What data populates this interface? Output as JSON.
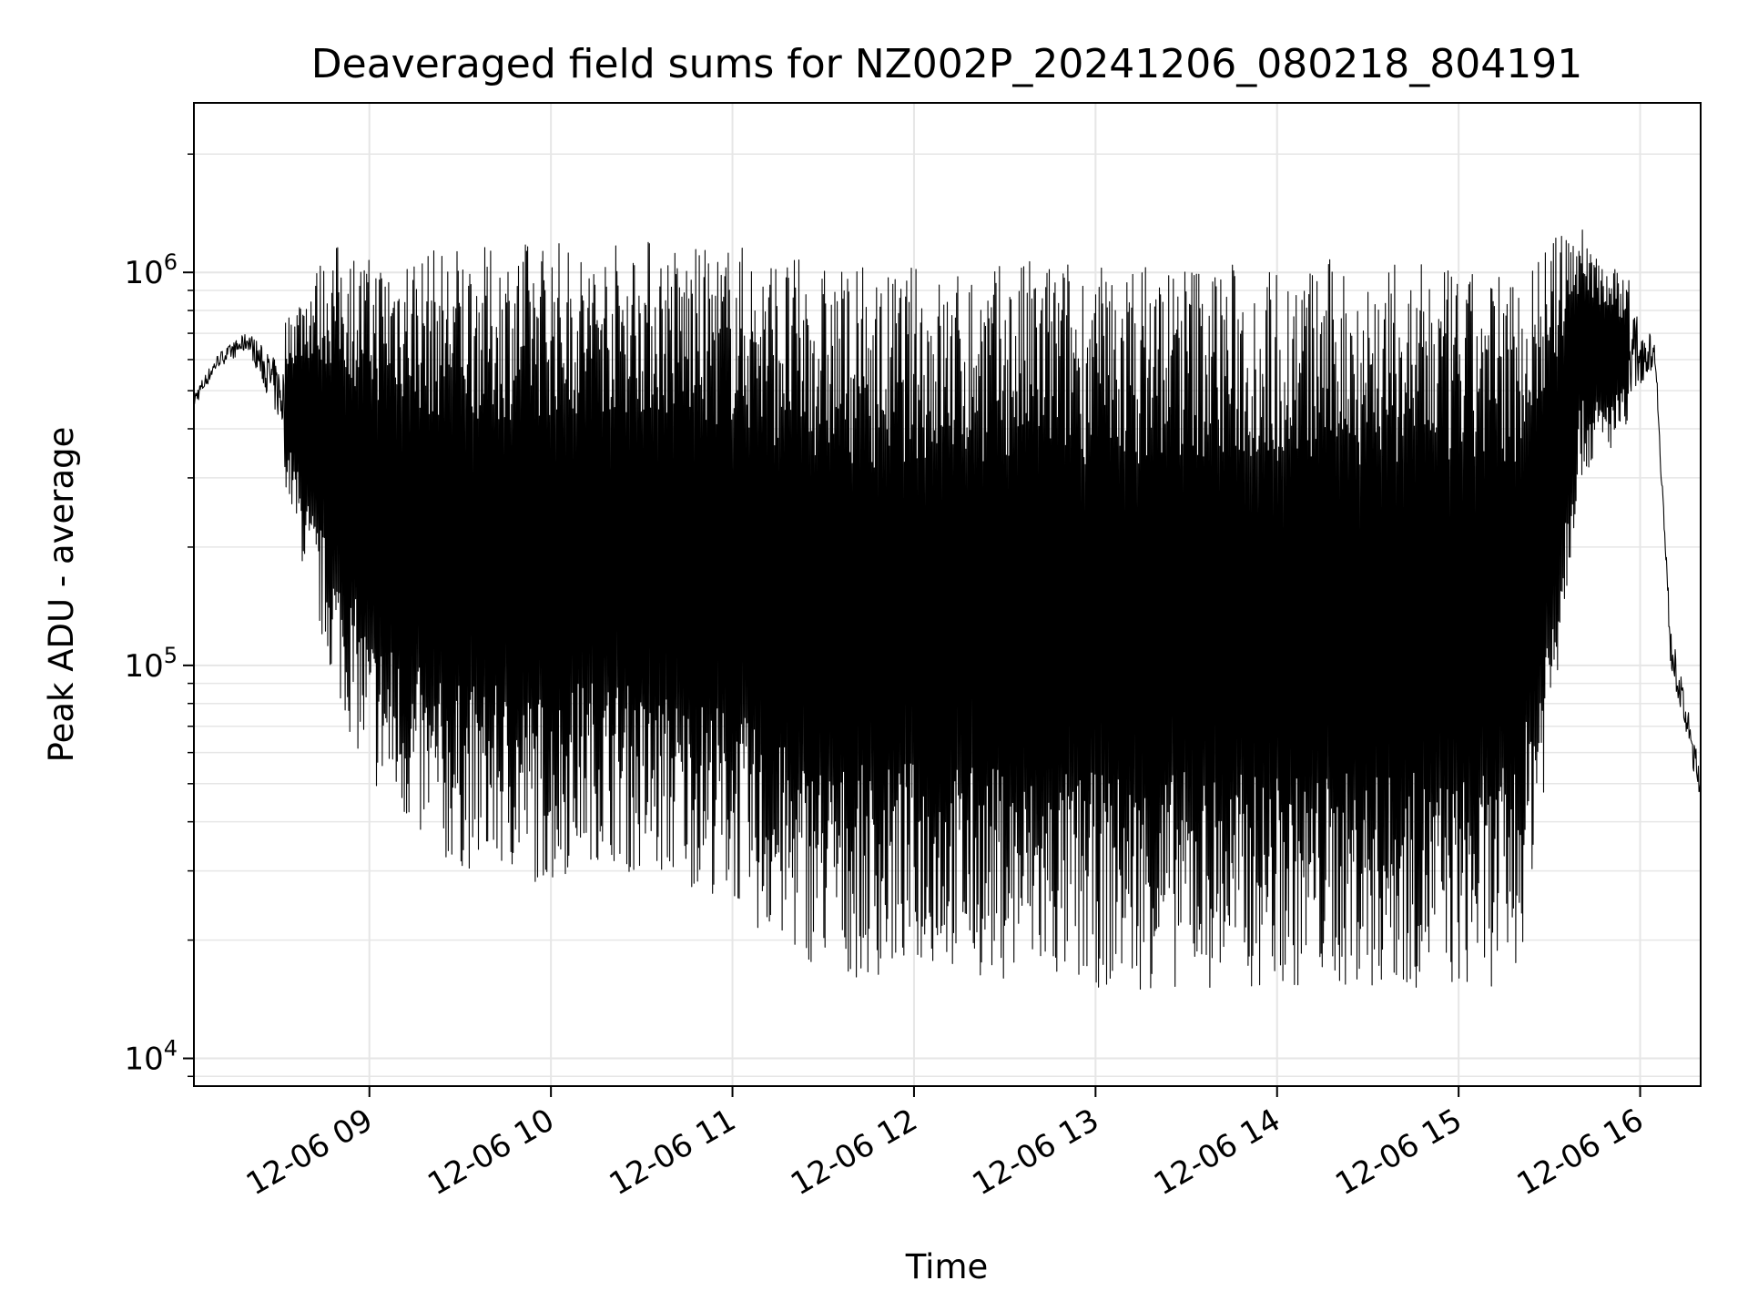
{
  "chart_data": {
    "type": "line",
    "title": "Deaveraged field sums for NZ002P_20241206_080218_804191",
    "xlabel": "Time",
    "ylabel": "Peak ADU - average",
    "y_scale": "log",
    "ylim": [
      8500,
      2700000
    ],
    "xlim": [
      "2024-12-06 08:02",
      "2024-12-06 16:20"
    ],
    "grid": true,
    "line_color": "#000000",
    "grid_color": "#e6e6e6",
    "x_ticks": [
      {
        "value": "2024-12-06 09:00",
        "label": "12-06 09"
      },
      {
        "value": "2024-12-06 10:00",
        "label": "12-06 10"
      },
      {
        "value": "2024-12-06 11:00",
        "label": "12-06 11"
      },
      {
        "value": "2024-12-06 12:00",
        "label": "12-06 12"
      },
      {
        "value": "2024-12-06 13:00",
        "label": "12-06 13"
      },
      {
        "value": "2024-12-06 14:00",
        "label": "12-06 14"
      },
      {
        "value": "2024-12-06 15:00",
        "label": "12-06 15"
      },
      {
        "value": "2024-12-06 16:00",
        "label": "12-06 16"
      }
    ],
    "y_ticks": [
      {
        "value": 10000,
        "base": "10",
        "exp": "4"
      },
      {
        "value": 100000,
        "base": "10",
        "exp": "5"
      },
      {
        "value": 1000000,
        "base": "10",
        "exp": "6"
      }
    ],
    "series": [
      {
        "x": [
          "2024-12-06 08:02",
          "2024-12-06 08:10",
          "2024-12-06 08:20",
          "2024-12-06 08:30",
          "2024-12-06 08:40",
          "2024-12-06 08:50",
          "2024-12-06 09:00",
          "2024-12-06 09:10",
          "2024-12-06 09:20",
          "2024-12-06 09:30",
          "2024-12-06 09:40",
          "2024-12-06 09:50",
          "2024-12-06 10:00",
          "2024-12-06 10:10",
          "2024-12-06 10:20",
          "2024-12-06 10:30",
          "2024-12-06 10:40",
          "2024-12-06 10:50",
          "2024-12-06 11:00",
          "2024-12-06 11:10",
          "2024-12-06 11:20",
          "2024-12-06 11:30",
          "2024-12-06 11:40",
          "2024-12-06 11:50",
          "2024-12-06 12:00",
          "2024-12-06 12:10",
          "2024-12-06 12:20",
          "2024-12-06 12:30",
          "2024-12-06 12:40",
          "2024-12-06 12:50",
          "2024-12-06 13:00",
          "2024-12-06 13:10",
          "2024-12-06 13:20",
          "2024-12-06 13:30",
          "2024-12-06 13:40",
          "2024-12-06 13:50",
          "2024-12-06 14:00",
          "2024-12-06 14:10",
          "2024-12-06 14:20",
          "2024-12-06 14:30",
          "2024-12-06 14:40",
          "2024-12-06 14:50",
          "2024-12-06 15:00",
          "2024-12-06 15:10",
          "2024-12-06 15:20",
          "2024-12-06 15:30",
          "2024-12-06 15:40",
          "2024-12-06 15:50",
          "2024-12-06 16:00",
          "2024-12-06 16:05",
          "2024-12-06 16:10",
          "2024-12-06 16:20"
        ],
        "upper": [
          520000,
          650000,
          750000,
          700000,
          1000000,
          1200000,
          1100000,
          1200000,
          1150000,
          1200000,
          1150000,
          1200000,
          1250000,
          1150000,
          1200000,
          1250000,
          1200000,
          1150000,
          1200000,
          1150000,
          1100000,
          1050000,
          1050000,
          1000000,
          1050000,
          1000000,
          1050000,
          1050000,
          1100000,
          1100000,
          1050000,
          1050000,
          1100000,
          1100000,
          1100000,
          1050000,
          1050000,
          1050000,
          1100000,
          1050000,
          1050000,
          1050000,
          1000000,
          1000000,
          1050000,
          1200000,
          1350000,
          1050000,
          950000,
          700000,
          140000,
          60000
        ],
        "lower": [
          430000,
          550000,
          600000,
          350000,
          150000,
          80000,
          50000,
          40000,
          32000,
          30000,
          30000,
          29000,
          27000,
          32000,
          32000,
          28000,
          28000,
          27000,
          25000,
          20000,
          18000,
          17000,
          16000,
          16000,
          17000,
          17000,
          16000,
          16000,
          15000,
          15000,
          15000,
          15000,
          15000,
          15000,
          15000,
          15000,
          15000,
          15000,
          15000,
          15000,
          15000,
          15000,
          15000,
          15000,
          17000,
          60000,
          300000,
          350000,
          420000,
          550000,
          90000,
          40000
        ]
      }
    ]
  }
}
